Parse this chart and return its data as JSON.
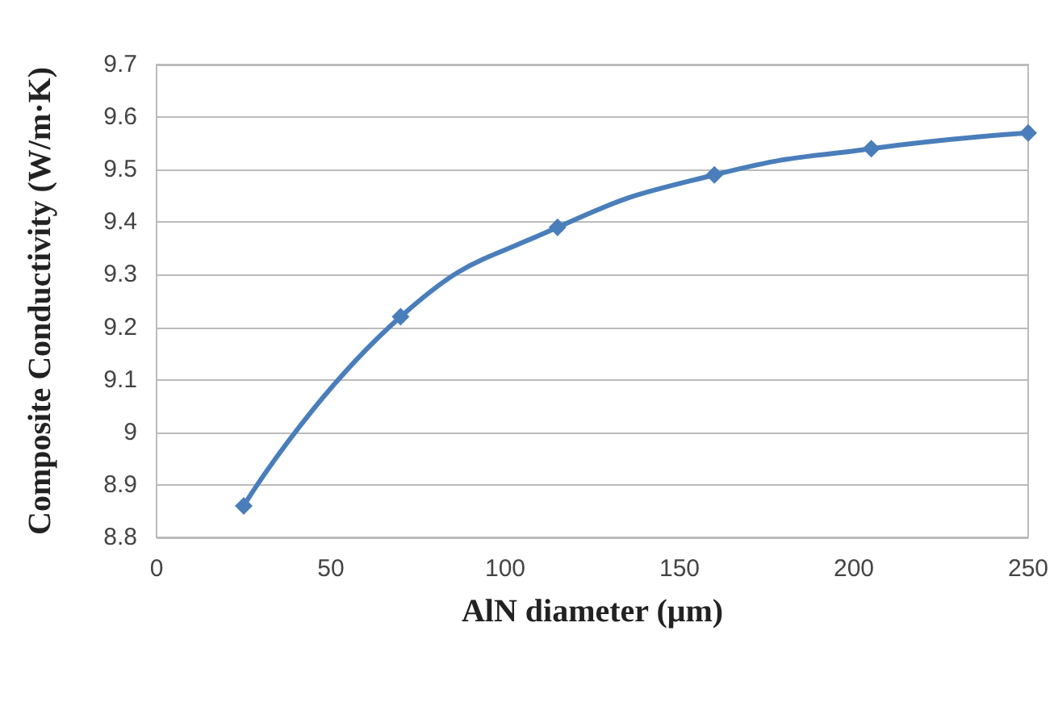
{
  "chart_data": {
    "type": "line",
    "xlabel": "AlN diameter (μm)",
    "ylabel": "Composite Conductivity (W/m·K)",
    "x": [
      25,
      70,
      115,
      160,
      205,
      250
    ],
    "series": [
      {
        "color": "#4a7ebb",
        "values": [
          8.86,
          9.22,
          9.39,
          9.49,
          9.54,
          9.57
        ]
      }
    ],
    "xlim": [
      0,
      250
    ],
    "xticks": [
      0,
      50,
      100,
      150,
      200,
      250
    ],
    "ylim": [
      8.8,
      9.7
    ],
    "yticks": [
      8.8,
      8.9,
      9,
      9.1,
      9.2,
      9.3,
      9.4,
      9.5,
      9.6,
      9.7
    ],
    "grid": "y",
    "marker": "diamond",
    "line_style": "solid"
  }
}
